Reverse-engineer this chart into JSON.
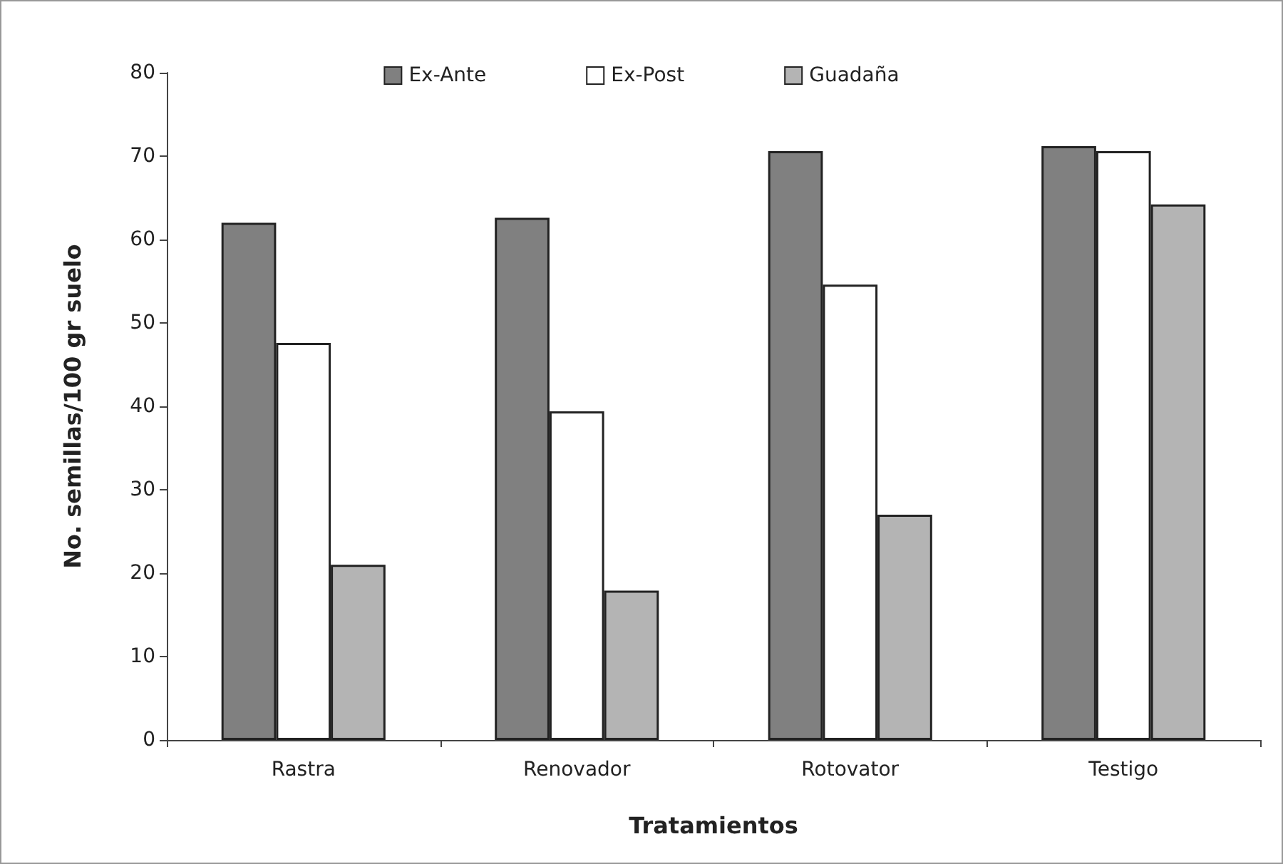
{
  "chart_data": {
    "type": "bar",
    "xlabel": "Tratamientos",
    "ylabel": "No. semillas/100 gr suelo",
    "categories": [
      "Rastra",
      "Renovador",
      "Rotovator",
      "Testigo"
    ],
    "series": [
      {
        "name": "Ex-Ante",
        "color": "#808080",
        "values": [
          62,
          62.6,
          70.6,
          71.2
        ]
      },
      {
        "name": "Ex-Post",
        "color": "#ffffff",
        "values": [
          47.6,
          39.4,
          54.6,
          70.6
        ]
      },
      {
        "name": "Guadaña",
        "color": "#b4b4b4",
        "values": [
          21,
          17.9,
          27,
          64.2
        ]
      }
    ],
    "ylim": [
      0,
      80
    ],
    "yticks": [
      0,
      10,
      20,
      30,
      40,
      50,
      60,
      70,
      80
    ],
    "grid": false,
    "legend": "top"
  }
}
